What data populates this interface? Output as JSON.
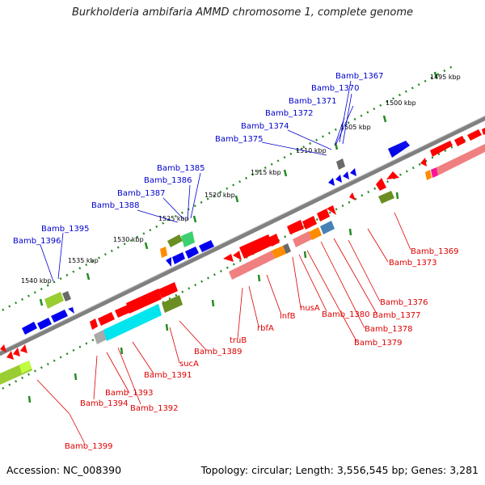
{
  "title": "Burkholderia ambifaria AMMD chromosome 1, complete genome",
  "accession": "Accession: NC_008390",
  "topology": "Topology: circular; Length: 3,556,545 bp; Genes: 3,281",
  "colors": {
    "backbone": "#808080",
    "tick_green": "#228b22",
    "label_top": "#0000cc",
    "label_bottom": "#dd0000",
    "gene_red": "#ff0000",
    "gene_blue": "#0000ee",
    "gene_cyan": "#00e5ee",
    "gene_salmon": "#f08080",
    "gene_lime": "#9acd32",
    "gene_olive": "#6b8e23",
    "gene_orange": "#ff8c00",
    "gene_gray": "#a9a9a9",
    "gene_steel": "#4682b4",
    "gene_springgreen": "#3cd070"
  },
  "kbp_ticks": [
    "1495 kbp",
    "1500 kbp",
    "1505 kbp",
    "1510 kbp",
    "1515 kbp",
    "1520 kbp",
    "1525 kbp",
    "1530 kbp",
    "1535 kbp",
    "1540 kbp"
  ],
  "top_labels": [
    "Bamb_1367",
    "Bamb_1370",
    "Bamb_1371",
    "Bamb_1372",
    "Bamb_1374",
    "Bamb_1375",
    "Bamb_1385",
    "Bamb_1386",
    "Bamb_1387",
    "Bamb_1388",
    "Bamb_1395",
    "Bamb_1396"
  ],
  "bottom_labels": [
    "Bamb_1369",
    "Bamb_1373",
    "Bamb_1376",
    "Bamb_1377",
    "Bamb_1378",
    "Bamb_1379",
    "Bamb_1380",
    "nusA",
    "infB",
    "rbfA",
    "truB",
    "Bamb_1389",
    "sucA",
    "Bamb_1391",
    "Bamb_1392",
    "Bamb_1393",
    "Bamb_1394",
    "Bamb_1399"
  ]
}
